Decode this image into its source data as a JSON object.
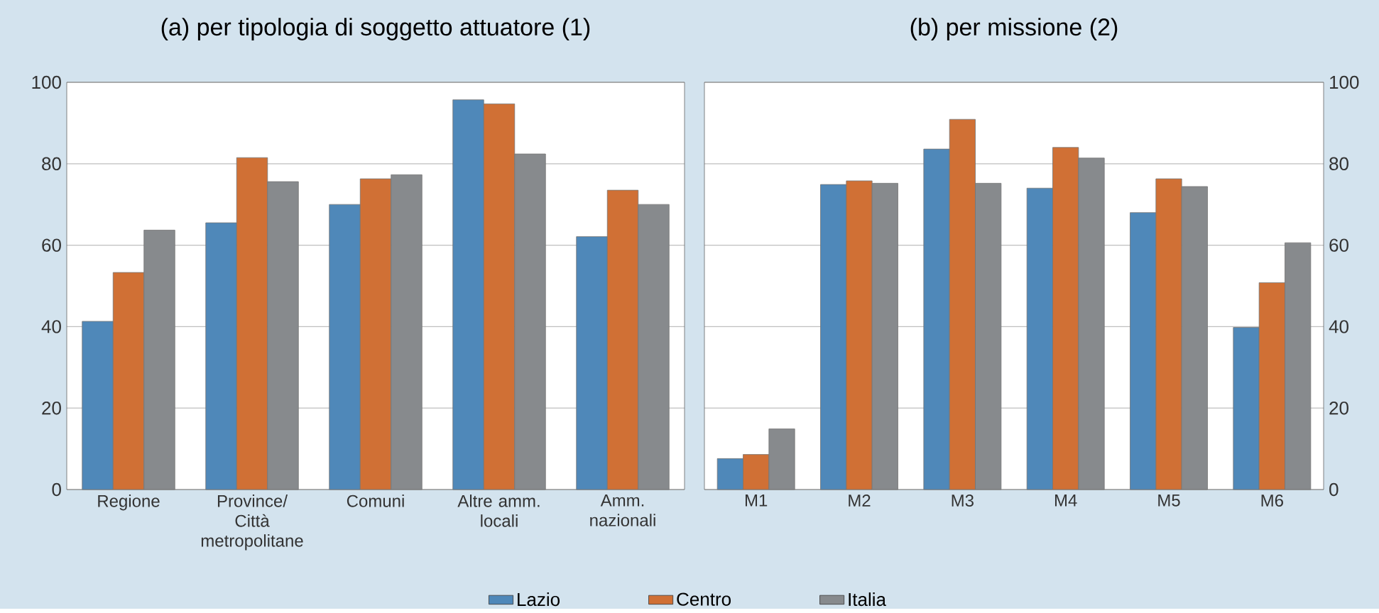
{
  "chart_data": [
    {
      "type": "bar",
      "title": "(a) per tipologia di soggetto attuatore (1)",
      "categories": [
        "Regione",
        "Province/ Città metropolitane",
        "Comuni",
        "Altre amm. locali",
        "Amm. nazionali"
      ],
      "series": [
        {
          "name": "Lazio",
          "color": "#4f88b9",
          "values": [
            41.3,
            65.5,
            70,
            95.7,
            62.1
          ]
        },
        {
          "name": "Centro",
          "color": "#d07035",
          "values": [
            53.3,
            81.5,
            76.3,
            94.7,
            73.5
          ]
        },
        {
          "name": "Italia",
          "color": "#878a8d",
          "values": [
            63.7,
            75.6,
            77.3,
            82.4,
            70
          ]
        }
      ],
      "ylim": [
        0,
        100
      ],
      "yticks": [
        0,
        20,
        40,
        60,
        80,
        100
      ],
      "grid": "y",
      "legend": "bottom"
    },
    {
      "type": "bar",
      "title": "(b) per missione (2)",
      "categories": [
        "M1",
        "M2",
        "M3",
        "M4",
        "M5",
        "M6"
      ],
      "series": [
        {
          "color": "#4f88b9",
          "values": [
            7.6,
            74.9,
            83.6,
            74,
            68,
            39.8
          ]
        },
        {
          "color": "#d07035",
          "values": [
            8.6,
            75.8,
            90.9,
            84,
            76.3,
            50.8
          ]
        },
        {
          "color": "#878a8d",
          "values": [
            14.9,
            75.2,
            75.2,
            81.4,
            74.4,
            60.6
          ]
        }
      ],
      "ylim": [
        0,
        100
      ],
      "yticks": [
        0,
        20,
        40,
        60,
        80,
        100
      ],
      "grid": "y"
    }
  ]
}
